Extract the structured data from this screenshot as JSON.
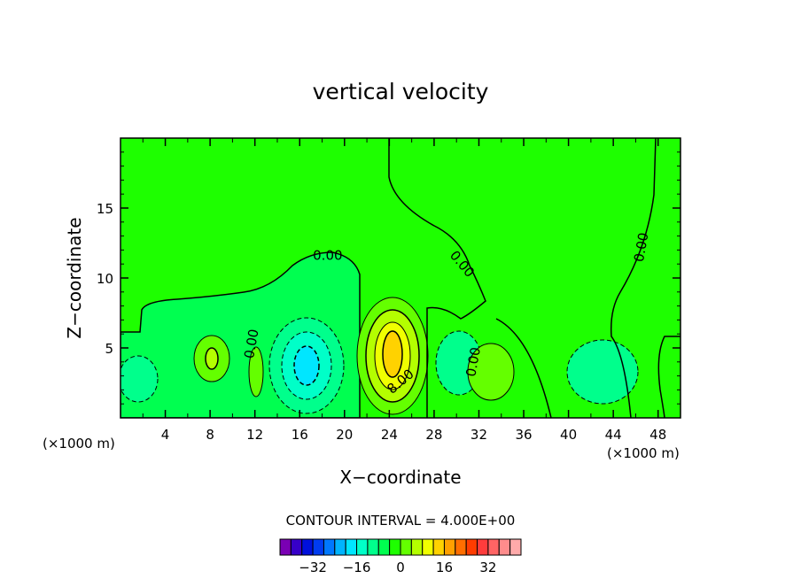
{
  "chart_data": {
    "type": "heatmap",
    "title": "vertical velocity",
    "xlabel": "X−coordinate",
    "ylabel": "Z−coordinate",
    "x_unit_left": "(×1000 m)",
    "x_unit_right": "(×1000 m)",
    "xlim": [
      0,
      50
    ],
    "ylim": [
      0,
      20
    ],
    "x_ticks": [
      4,
      8,
      12,
      16,
      20,
      24,
      28,
      32,
      36,
      40,
      44,
      48
    ],
    "y_ticks": [
      5,
      10,
      15
    ],
    "contour_labels": [
      {
        "text": "0.00",
        "x": 18.5,
        "y": 11.6,
        "angle": 0
      },
      {
        "text": "0.00",
        "x": 30.5,
        "y": 11.0,
        "angle": 50
      },
      {
        "text": "0.00",
        "x": 46.5,
        "y": 12.2,
        "angle": -80
      },
      {
        "text": "0.00",
        "x": 11.7,
        "y": 5.3,
        "angle": -80
      },
      {
        "text": "0.00",
        "x": 31.5,
        "y": 4.0,
        "angle": -80
      },
      {
        "text": "8.00",
        "x": 25.0,
        "y": 2.6,
        "angle": -40
      }
    ],
    "contour_interval_label": "CONTOUR INTERVAL =  4.000E+00",
    "colorbar": {
      "colors": [
        "#7a00b4",
        "#3700c8",
        "#0010dc",
        "#003cf0",
        "#0078ff",
        "#00b4ff",
        "#00e6ff",
        "#00ffc8",
        "#00ff8c",
        "#00ff50",
        "#1eff00",
        "#64ff00",
        "#b4ff00",
        "#f0ff00",
        "#ffd200",
        "#ffa000",
        "#ff6e00",
        "#ff3c00",
        "#ff3c3c",
        "#ff6464",
        "#ff8c8c",
        "#ffaaaa"
      ],
      "tick_labels": [
        "−32",
        "−16",
        "0",
        "16",
        "32"
      ],
      "tick_values": [
        -32,
        -16,
        0,
        16,
        32
      ]
    }
  }
}
